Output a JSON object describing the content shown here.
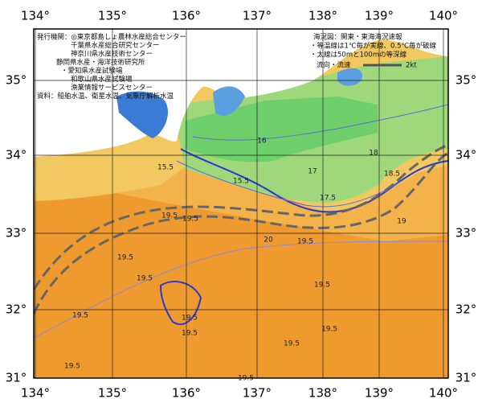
{
  "info": {
    "lines": [
      "発行機関：◎東京都島しょ農林水産総合センター",
      "千葉県水産総合研究センター",
      "神奈川県水産技術センター",
      "静岡県水産・海洋技術研究所",
      "・愛知県水産試験場",
      "和歌山県水産試験場",
      "漁業情報サービスセンター",
      "資料：船舶水温、衛星水温、気象庁解析水温"
    ]
  },
  "legend": {
    "lines": [
      "海況図：関東・東海海況速報",
      "・等温線は1℃毎が実線、0.5℃毎が破線",
      "・太線は50mと100mの等深線"
    ],
    "flow_label": "流向・流速",
    "flow_value": "2kt"
  },
  "axes": {
    "lon_top": [
      "134°",
      "135°",
      "136°",
      "137°",
      "138°",
      "139°",
      "140°"
    ],
    "lon_bottom": [
      "134°",
      "135°",
      "136°",
      "137°",
      "138°",
      "139°",
      "140°"
    ],
    "lat_left": [
      "35°",
      "34°",
      "33°",
      "32°",
      "31°"
    ],
    "lat_right": [
      "35°",
      "34°",
      "33°",
      "32°",
      "31°"
    ]
  },
  "contour_labels": [
    "15.5",
    "16",
    "15.5",
    "17",
    "18",
    "17.5",
    "18.5",
    "19",
    "19.5",
    "19.5",
    "19.5",
    "19.5",
    "19.5",
    "19.5",
    "19.5",
    "19.5",
    "19.5",
    "19.5",
    "20",
    "19.5",
    "19.5",
    "19.5"
  ]
}
